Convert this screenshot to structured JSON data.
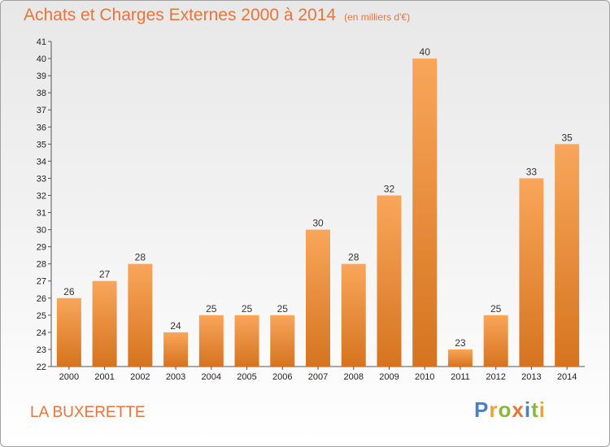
{
  "title": "Achats et Charges Externes 2000 à 2014",
  "unit": "(en milliers d'€)",
  "place": "LA BUXERETTE",
  "logo": {
    "letters": [
      "P",
      "r",
      "o",
      "x",
      "i",
      "t",
      "i"
    ],
    "colors": [
      "#4a7fc1",
      "#f0a22a",
      "#8ab83a",
      "#e8743b",
      "#4a7fc1",
      "#8ab83a",
      "#f0a22a"
    ]
  },
  "colors": {
    "bar_light": "#f9a65a",
    "bar_dark": "#d5741f",
    "title": "#e8743b"
  },
  "chart_data": {
    "type": "bar",
    "title": "Achats et Charges Externes 2000 à 2014",
    "subtitle": "(en milliers d'€)",
    "categories": [
      "2000",
      "2001",
      "2002",
      "2003",
      "2004",
      "2005",
      "2006",
      "2007",
      "2008",
      "2009",
      "2010",
      "2011",
      "2012",
      "2013",
      "2014"
    ],
    "values": [
      26,
      27,
      28,
      24,
      25,
      25,
      25,
      30,
      28,
      32,
      40,
      23,
      25,
      33,
      35
    ],
    "ylim": [
      22,
      41
    ],
    "yticks": [
      22,
      23,
      24,
      25,
      26,
      27,
      28,
      29,
      30,
      31,
      32,
      33,
      34,
      35,
      36,
      37,
      38,
      39,
      40,
      41
    ],
    "grid": false,
    "legend": "none"
  }
}
